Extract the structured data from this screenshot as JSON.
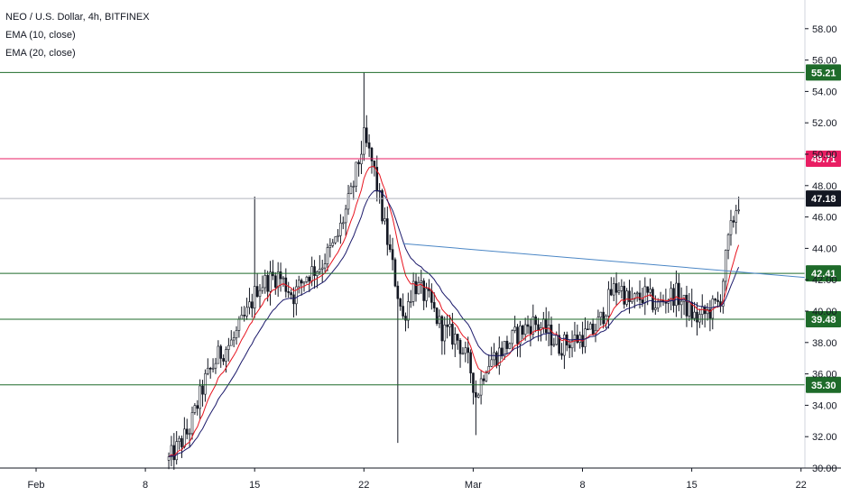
{
  "chart_data": {
    "type": "candlestick",
    "title": "NEO / U.S. Dollar, 4h, BITFINEX",
    "indicators": [
      {
        "name": "EMA (10, close)",
        "color": "#e8141f"
      },
      {
        "name": "EMA (20, close)",
        "color": "#1c1a6b"
      }
    ],
    "xaxis": {
      "range_days": [
        0,
        51
      ],
      "tick_labels": [
        {
          "label": "Feb",
          "day": 0
        },
        {
          "label": "8",
          "day": 7
        },
        {
          "label": "15",
          "day": 14
        },
        {
          "label": "22",
          "day": 21
        },
        {
          "label": "Mar",
          "day": 28
        },
        {
          "label": "8",
          "day": 35
        },
        {
          "label": "15",
          "day": 42
        },
        {
          "label": "22",
          "day": 49
        }
      ]
    },
    "yaxis": {
      "ylim": [
        29.5,
        58.0
      ],
      "tick_labels": [
        "30.00",
        "32.00",
        "34.00",
        "36.00",
        "38.00",
        "40.00",
        "42.00",
        "44.00",
        "46.00",
        "48.00",
        "50.00",
        "52.00",
        "54.00",
        "56.00",
        "58.00"
      ]
    },
    "horizontal_levels": [
      {
        "value": 55.21,
        "label": "55.21",
        "color": "#1e6b2a"
      },
      {
        "value": 49.71,
        "label": "49.71",
        "color": "#e91e63"
      },
      {
        "value": 47.18,
        "label": "47.18",
        "color": "#131722",
        "line_color": "#b2b5be"
      },
      {
        "value": 42.41,
        "label": "42.41",
        "color": "#1e6b2a"
      },
      {
        "value": 39.48,
        "label": "39.48",
        "color": "#1e6b2a"
      },
      {
        "value": 35.3,
        "label": "35.30",
        "color": "#1e6b2a"
      }
    ],
    "trendline": {
      "from": {
        "day": 23.5,
        "value": 44.3
      },
      "to": {
        "day": 51,
        "value": 42.0
      },
      "color": "#4a86c5"
    },
    "close_keypoints": [
      [
        8.5,
        30.5
      ],
      [
        9.8,
        32.4
      ],
      [
        10.8,
        35.5
      ],
      [
        11.7,
        37.2
      ],
      [
        12.6,
        38.1
      ],
      [
        13.6,
        40.0
      ],
      [
        14.2,
        41.6
      ],
      [
        15.5,
        42.3
      ],
      [
        16.5,
        41.0
      ],
      [
        17.3,
        42.3
      ],
      [
        18.2,
        42.9
      ],
      [
        19.2,
        44.4
      ],
      [
        20.2,
        47.5
      ],
      [
        21.0,
        51.0
      ],
      [
        21.6,
        49.2
      ],
      [
        22.2,
        46.0
      ],
      [
        23.0,
        42.0
      ],
      [
        23.5,
        39.5
      ],
      [
        24.2,
        41.8
      ],
      [
        25.2,
        40.6
      ],
      [
        26.0,
        38.8
      ],
      [
        27.0,
        38.2
      ],
      [
        27.8,
        36.4
      ],
      [
        28.2,
        34.5
      ],
      [
        28.8,
        36.6
      ],
      [
        29.6,
        37.3
      ],
      [
        30.8,
        38.5
      ],
      [
        31.8,
        39.3
      ],
      [
        32.6,
        38.8
      ],
      [
        33.5,
        37.8
      ],
      [
        34.5,
        38.2
      ],
      [
        35.6,
        38.6
      ],
      [
        36.2,
        39.5
      ],
      [
        36.9,
        41.3
      ],
      [
        37.4,
        41.6
      ],
      [
        38.0,
        40.5
      ],
      [
        39.0,
        41.0
      ],
      [
        39.8,
        40.3
      ],
      [
        40.4,
        40.9
      ],
      [
        41.0,
        41.1
      ],
      [
        41.6,
        40.3
      ],
      [
        42.3,
        39.5
      ],
      [
        43.0,
        39.9
      ],
      [
        43.8,
        40.6
      ],
      [
        44.3,
        44.2
      ],
      [
        44.8,
        46.5
      ],
      [
        45.1,
        47.2
      ]
    ],
    "candle_interval_days": 0.1667
  }
}
